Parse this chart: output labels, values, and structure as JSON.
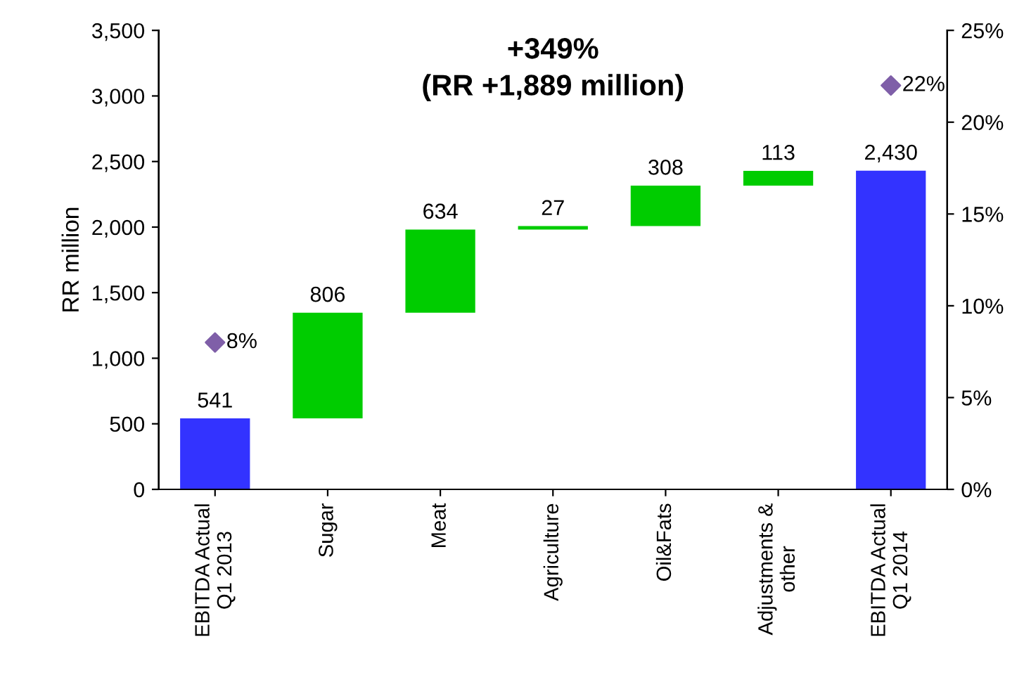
{
  "chart_data": {
    "type": "bar",
    "title": "+349%",
    "subtitle": "(RR +1,889 million)",
    "ylabel": "RR million",
    "categories": [
      "EBITDA Actual\nQ1 2013",
      "Sugar",
      "Meat",
      "Agriculture",
      "Oil&Fats",
      "Adjustments &\nother",
      "EBITDA Actual\nQ1 2014"
    ],
    "series": [
      {
        "values": [
          541,
          806,
          634,
          27,
          308,
          113,
          2430
        ],
        "base": [
          0,
          541,
          1347,
          1981,
          2008,
          2316,
          0
        ],
        "colors": [
          "#3333ff",
          "#00cc00",
          "#00cc00",
          "#00cc00",
          "#00cc00",
          "#00cc00",
          "#3333ff"
        ],
        "value_labels": [
          "541",
          "806",
          "634",
          "27",
          "308",
          "113",
          "2,430"
        ]
      },
      {
        "type": "scatter",
        "axis": "y2",
        "marker": "diamond",
        "color": "#7f5fa8",
        "values": [
          8,
          null,
          null,
          null,
          null,
          null,
          22
        ],
        "value_labels": [
          "8%",
          null,
          null,
          null,
          null,
          null,
          "22%"
        ]
      }
    ],
    "ylim": [
      0,
      3500
    ],
    "yticks": [
      0,
      {
        "value": 500,
        "label": "500"
      },
      {
        "value": 1000,
        "label": "1,000"
      },
      {
        "value": 1500,
        "label": "1,500"
      },
      {
        "value": 2000,
        "label": "2,000"
      },
      {
        "value": 2500,
        "label": "2,500"
      },
      {
        "value": 3000,
        "label": "3,000"
      },
      {
        "value": 3500,
        "label": "3,500"
      }
    ],
    "y2lim": [
      0,
      25
    ],
    "y2ticks": [
      {
        "value": 0,
        "label": "0%"
      },
      {
        "value": 5,
        "label": "5%"
      },
      {
        "value": 10,
        "label": "10%"
      },
      {
        "value": 15,
        "label": "15%"
      },
      {
        "value": 20,
        "label": "20%"
      },
      {
        "value": 25,
        "label": "25%"
      }
    ],
    "grid": false,
    "legend": false
  }
}
